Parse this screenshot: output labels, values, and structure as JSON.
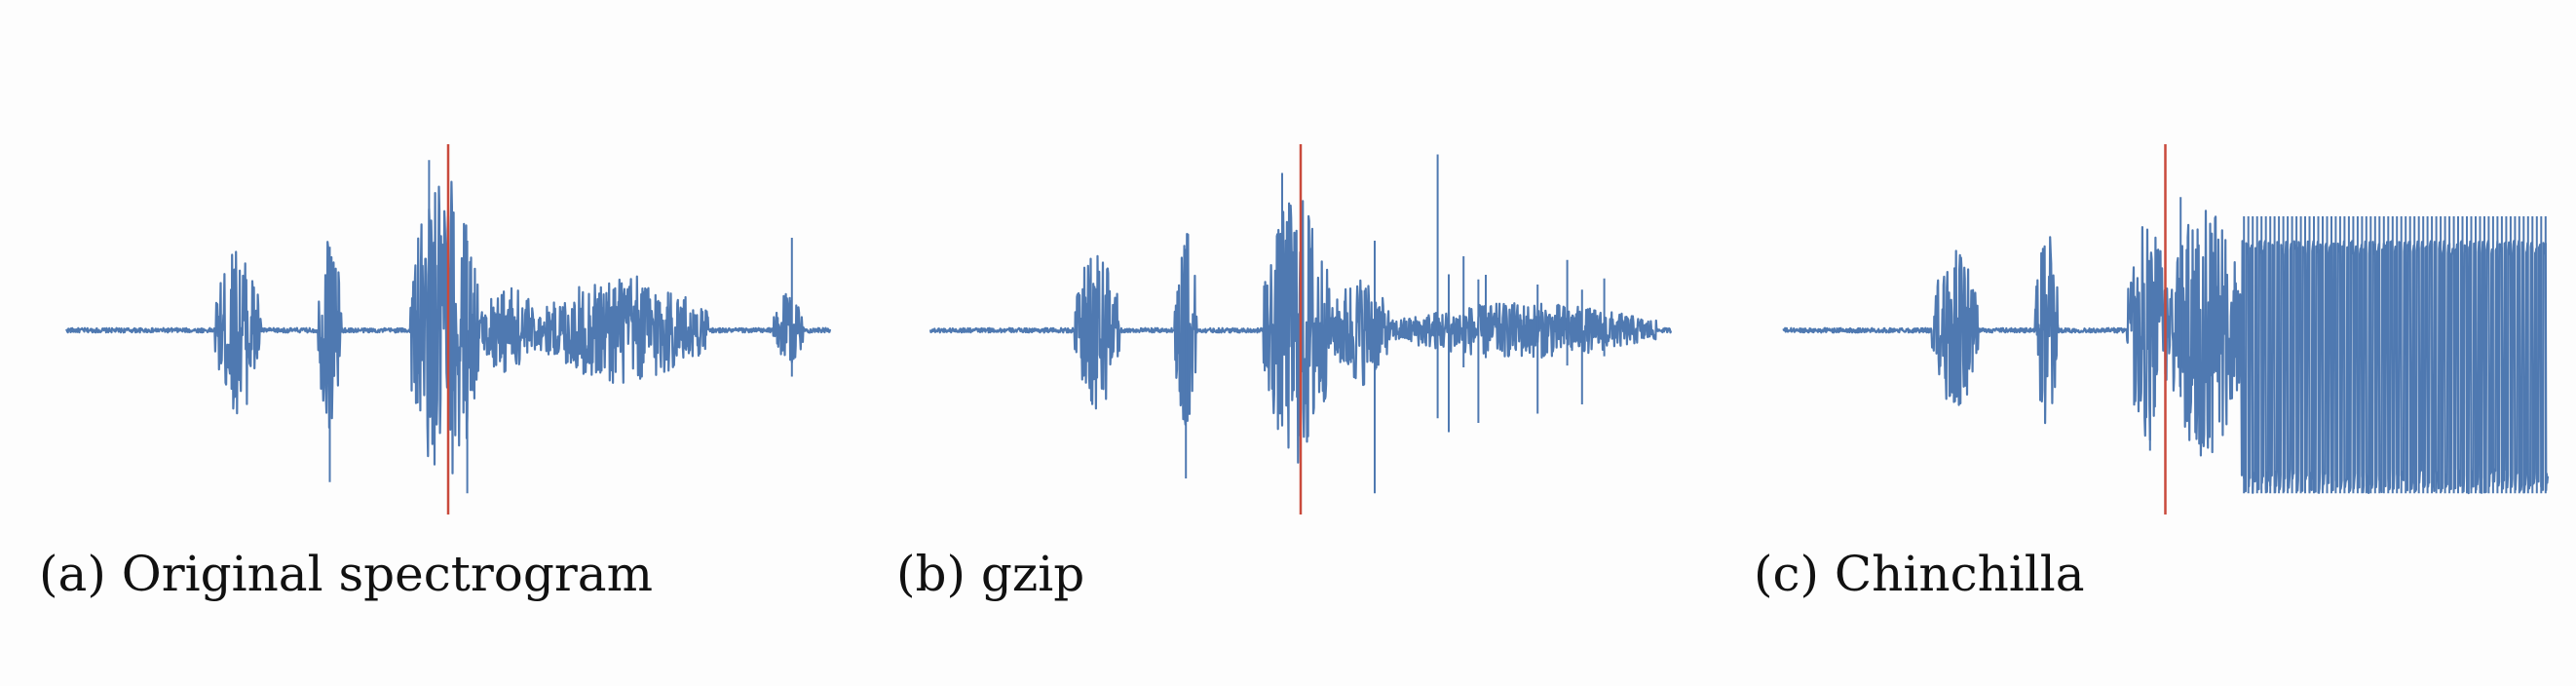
{
  "figure": {
    "colors": {
      "waveform": "#4f79b1",
      "cursor": "#c94a3c"
    }
  },
  "chart_data": [
    {
      "type": "line",
      "caption": "(a) Original spectrogram",
      "xlim": [
        0,
        1
      ],
      "ylim": [
        -1,
        1
      ],
      "cursor_x": 0.5,
      "bursts": [
        {
          "start": 0.195,
          "end": 0.255,
          "amp": 0.45
        },
        {
          "start": 0.33,
          "end": 0.36,
          "amp": 0.55
        },
        {
          "start": 0.45,
          "end": 0.54,
          "amp": 0.85
        },
        {
          "start": 0.54,
          "end": 0.62,
          "amp": 0.25
        },
        {
          "start": 0.62,
          "end": 0.84,
          "amp": 0.3
        },
        {
          "start": 0.925,
          "end": 0.965,
          "amp": 0.2
        }
      ],
      "spikes": [
        {
          "x": 0.345,
          "amp": 0.82
        },
        {
          "x": 0.475,
          "amp": 0.92
        },
        {
          "x": 0.525,
          "amp": 0.88
        },
        {
          "x": 0.95,
          "amp": 0.5
        }
      ]
    },
    {
      "type": "line",
      "caption": "(b) gzip",
      "xlim": [
        0,
        1
      ],
      "ylim": [
        -1,
        1
      ],
      "cursor_x": 0.5,
      "bursts": [
        {
          "start": 0.195,
          "end": 0.255,
          "amp": 0.45
        },
        {
          "start": 0.33,
          "end": 0.36,
          "amp": 0.55
        },
        {
          "start": 0.45,
          "end": 0.54,
          "amp": 0.75
        },
        {
          "start": 0.54,
          "end": 0.62,
          "amp": 0.3
        },
        {
          "start": 0.62,
          "end": 0.98,
          "amp": 0.15
        }
      ],
      "spikes": [
        {
          "x": 0.345,
          "amp": 0.8
        },
        {
          "x": 0.475,
          "amp": 0.85
        },
        {
          "x": 0.6,
          "amp": 0.88
        },
        {
          "x": 0.685,
          "amp": 0.95
        },
        {
          "x": 0.7,
          "amp": 0.55
        },
        {
          "x": 0.72,
          "amp": 0.4
        },
        {
          "x": 0.74,
          "amp": 0.5
        },
        {
          "x": 0.75,
          "amp": 0.3
        },
        {
          "x": 0.82,
          "amp": 0.45
        },
        {
          "x": 0.86,
          "amp": 0.38
        },
        {
          "x": 0.88,
          "amp": 0.4
        },
        {
          "x": 0.91,
          "amp": 0.28
        }
      ]
    },
    {
      "type": "line",
      "caption": "(c) Chinchilla",
      "xlim": [
        0,
        1
      ],
      "ylim": [
        -1,
        1
      ],
      "cursor_x": 0.5,
      "bursts": [
        {
          "start": 0.195,
          "end": 0.255,
          "amp": 0.45
        },
        {
          "start": 0.33,
          "end": 0.36,
          "amp": 0.55
        },
        {
          "start": 0.45,
          "end": 0.505,
          "amp": 0.6
        },
        {
          "start": 0.505,
          "end": 0.6,
          "amp": 0.7
        }
      ],
      "periodic": {
        "start": 0.6,
        "end": 1.0,
        "amp": 0.88,
        "count": 70
      },
      "spikes": [
        {
          "x": 0.48,
          "amp": 0.65
        },
        {
          "x": 0.52,
          "amp": 0.72
        }
      ]
    }
  ]
}
